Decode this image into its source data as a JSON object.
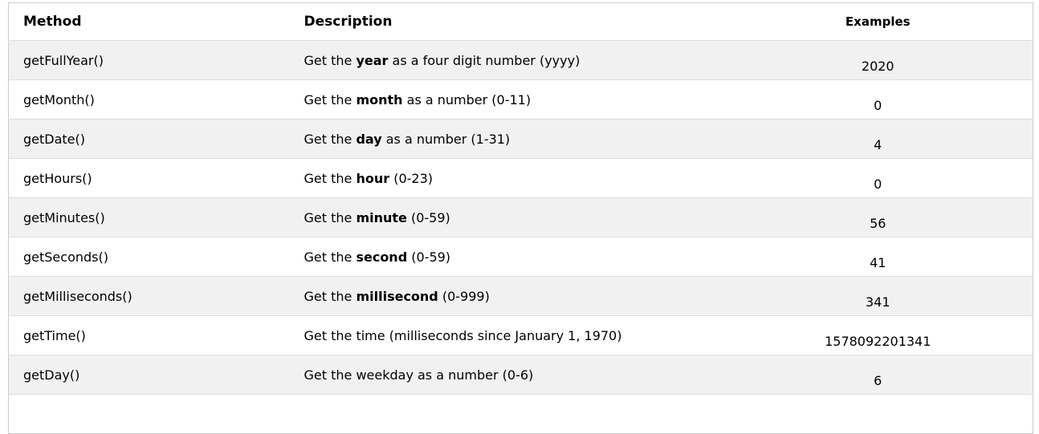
{
  "table": {
    "columns": [
      {
        "label": "Method"
      },
      {
        "label": "Description"
      },
      {
        "label": "Examples"
      }
    ],
    "rows": [
      {
        "method": "getFullYear()",
        "desc_pre": "Get the ",
        "desc_bold": "year",
        "desc_post": " as a four digit number (yyyy)",
        "example": "2020"
      },
      {
        "method": "getMonth()",
        "desc_pre": "Get the ",
        "desc_bold": "month",
        "desc_post": " as a number (0-11)",
        "example": "0"
      },
      {
        "method": "getDate()",
        "desc_pre": "Get the ",
        "desc_bold": "day",
        "desc_post": " as a number (1-31)",
        "example": "4"
      },
      {
        "method": "getHours()",
        "desc_pre": "Get the ",
        "desc_bold": "hour",
        "desc_post": " (0-23)",
        "example": "0"
      },
      {
        "method": "getMinutes()",
        "desc_pre": "Get the ",
        "desc_bold": "minute",
        "desc_post": " (0-59)",
        "example": "56"
      },
      {
        "method": "getSeconds()",
        "desc_pre": "Get the ",
        "desc_bold": "second",
        "desc_post": " (0-59)",
        "example": "41"
      },
      {
        "method": "getMilliseconds()",
        "desc_pre": "Get the ",
        "desc_bold": "millisecond",
        "desc_post": " (0-999)",
        "example": "341"
      },
      {
        "method": "getTime()",
        "desc_pre": "Get the time (milliseconds since January 1, 1970)",
        "desc_bold": "",
        "desc_post": "",
        "example": "1578092201341"
      },
      {
        "method": "getDay()",
        "desc_pre": "Get the weekday as a number (0-6)",
        "desc_bold": "",
        "desc_post": "",
        "example": "6"
      }
    ],
    "colors": {
      "stripe": "#f1f1f1",
      "outer_border": "#cccccc",
      "row_border": "#dddddd",
      "text": "#000000",
      "background": "#ffffff"
    }
  }
}
